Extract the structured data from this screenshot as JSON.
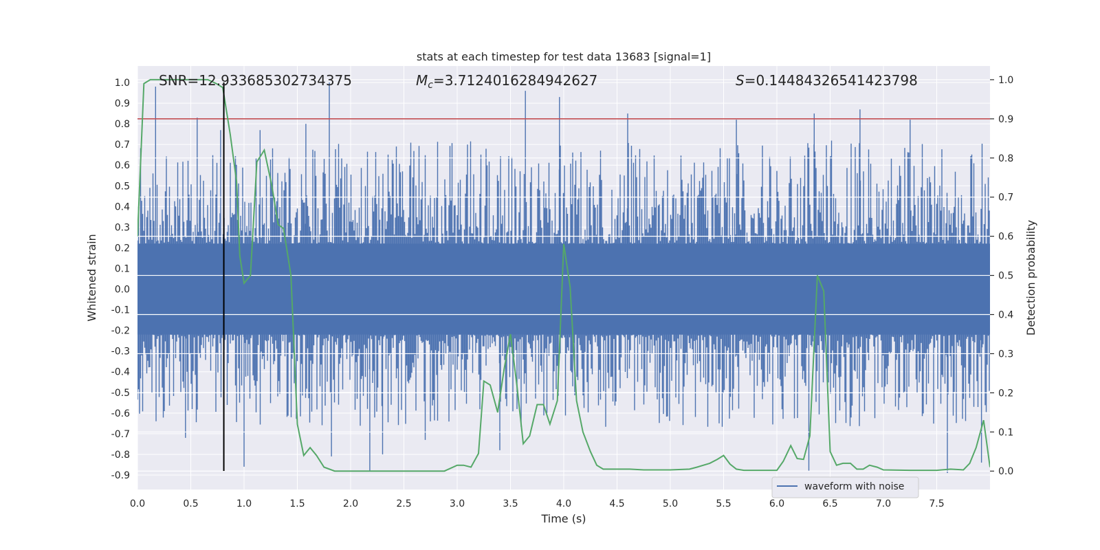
{
  "chart_data": {
    "type": "line",
    "title": "stats at each timestep for test data 13683 [signal=1]",
    "xlabel": "Time (s)",
    "ylabel": "Whitened strain",
    "y2label": "Detection probability",
    "xlim": [
      0.0,
      8.0
    ],
    "ylim": [
      -0.97,
      1.08
    ],
    "y2lim": [
      -0.047,
      1.035
    ],
    "xticks": [
      "0.0",
      "0.5",
      "1.0",
      "1.5",
      "2.0",
      "2.5",
      "3.0",
      "3.5",
      "4.0",
      "4.5",
      "5.0",
      "5.5",
      "6.0",
      "6.5",
      "7.0",
      "7.5"
    ],
    "yticks": [
      "-0.9",
      "-0.8",
      "-0.7",
      "-0.6",
      "-0.5",
      "-0.4",
      "-0.3",
      "-0.2",
      "-0.1",
      "0.0",
      "0.1",
      "0.2",
      "0.3",
      "0.4",
      "0.5",
      "0.6",
      "0.7",
      "0.8",
      "0.9",
      "1.0"
    ],
    "y2ticks": [
      "0.0",
      "0.1",
      "0.2",
      "0.3",
      "0.4",
      "0.5",
      "0.6",
      "0.7",
      "0.8",
      "0.9",
      "1.0"
    ],
    "grid": true,
    "legend_position": "bottom-right",
    "annotations": {
      "snr": "SNR=12.933685302734375",
      "mc_symbol": "M",
      "mc_sub": "c",
      "mc_value": "=3.7124016284942627",
      "s_symbol": "S",
      "s_value": "=0.14484326541423798"
    },
    "threshold_y2": 0.9,
    "marker_time": 0.81,
    "series": [
      {
        "name": "waveform with noise",
        "color": "#4c72b0",
        "axis": "left",
        "spikes": [
          [
            0.17,
            0.98
          ],
          [
            0.56,
            0.83
          ],
          [
            0.78,
            0.77
          ],
          [
            1.15,
            0.77
          ],
          [
            1.58,
            0.8
          ],
          [
            1.8,
            1.0
          ],
          [
            3.64,
            0.96
          ],
          [
            3.96,
            0.93
          ],
          [
            4.6,
            0.85
          ],
          [
            5.62,
            0.82
          ],
          [
            6.35,
            0.85
          ],
          [
            6.78,
            0.87
          ],
          [
            7.25,
            0.82
          ],
          [
            1.0,
            -0.86
          ],
          [
            1.82,
            -0.81
          ],
          [
            2.18,
            -0.88
          ],
          [
            2.3,
            -0.8
          ],
          [
            3.4,
            -0.78
          ],
          [
            6.3,
            -0.88
          ],
          [
            7.6,
            -0.89
          ],
          [
            7.92,
            -0.84
          ],
          [
            0.45,
            -0.72
          ],
          [
            2.7,
            -0.73
          ]
        ]
      },
      {
        "name": "",
        "color": "#55a868",
        "axis": "right",
        "x": [
          0.0,
          0.06,
          0.12,
          0.2,
          0.3,
          0.4,
          0.5,
          0.6,
          0.66,
          0.74,
          0.8,
          0.87,
          0.93,
          0.96,
          1.0,
          1.06,
          1.12,
          1.19,
          1.26,
          1.32,
          1.37,
          1.44,
          1.5,
          1.56,
          1.62,
          1.68,
          1.75,
          1.85,
          2.0,
          2.15,
          2.3,
          2.5,
          2.6,
          2.7,
          2.88,
          3.0,
          3.06,
          3.13,
          3.2,
          3.25,
          3.31,
          3.38,
          3.44,
          3.5,
          3.56,
          3.62,
          3.68,
          3.75,
          3.81,
          3.87,
          3.94,
          4.0,
          4.06,
          4.12,
          4.18,
          4.25,
          4.31,
          4.37,
          4.44,
          4.56,
          4.62,
          4.75,
          5.0,
          5.18,
          5.25,
          5.37,
          5.44,
          5.5,
          5.56,
          5.62,
          5.69,
          5.87,
          6.0,
          6.06,
          6.13,
          6.19,
          6.25,
          6.31,
          6.38,
          6.44,
          6.5,
          6.56,
          6.62,
          6.69,
          6.75,
          6.81,
          6.87,
          6.94,
          7.0,
          7.25,
          7.5,
          7.63,
          7.75,
          7.81,
          7.87,
          7.94,
          8.0
        ],
        "y": [
          0.6,
          0.99,
          1.0,
          1.0,
          1.0,
          1.0,
          1.0,
          1.0,
          1.0,
          0.99,
          0.98,
          0.86,
          0.74,
          0.55,
          0.48,
          0.5,
          0.79,
          0.82,
          0.73,
          0.63,
          0.62,
          0.5,
          0.12,
          0.04,
          0.06,
          0.04,
          0.01,
          0.0,
          0.0,
          0.0,
          0.0,
          0.0,
          0.0,
          0.0,
          0.0,
          0.015,
          0.015,
          0.01,
          0.045,
          0.23,
          0.22,
          0.15,
          0.26,
          0.35,
          0.22,
          0.07,
          0.09,
          0.17,
          0.17,
          0.12,
          0.18,
          0.58,
          0.47,
          0.18,
          0.1,
          0.05,
          0.015,
          0.005,
          0.005,
          0.005,
          0.005,
          0.003,
          0.003,
          0.005,
          0.01,
          0.02,
          0.03,
          0.04,
          0.018,
          0.005,
          0.002,
          0.002,
          0.002,
          0.025,
          0.065,
          0.032,
          0.03,
          0.09,
          0.5,
          0.46,
          0.05,
          0.015,
          0.02,
          0.02,
          0.005,
          0.005,
          0.015,
          0.01,
          0.003,
          0.002,
          0.002,
          0.005,
          0.003,
          0.02,
          0.06,
          0.13,
          0.01
        ]
      }
    ]
  }
}
